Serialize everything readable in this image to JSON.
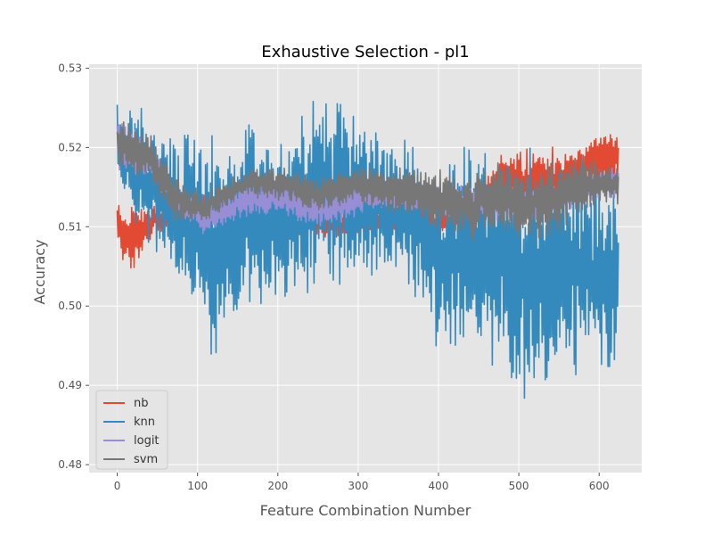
{
  "chart_data": {
    "type": "line",
    "title": "Exhaustive Selection - pl1",
    "xlabel": "Feature Combination Number",
    "ylabel": "Accuracy",
    "xlim": [
      -35,
      653
    ],
    "ylim": [
      0.479,
      0.5305
    ],
    "xticks": [
      0,
      100,
      200,
      300,
      400,
      500,
      600
    ],
    "yticks": [
      0.48,
      0.49,
      0.5,
      0.51,
      0.52,
      0.53
    ],
    "ytick_labels": [
      "0.48",
      "0.49",
      "0.50",
      "0.51",
      "0.52",
      "0.53"
    ],
    "grid": true,
    "legend_position": "lower-left",
    "n_points": 625,
    "series": [
      {
        "name": "nb",
        "color": "#E24A33",
        "anchors": [
          [
            0,
            0.5095
          ],
          [
            20,
            0.5085
          ],
          [
            45,
            0.511
          ],
          [
            80,
            0.5115
          ],
          [
            130,
            0.512
          ],
          [
            160,
            0.5115
          ],
          [
            200,
            0.511
          ],
          [
            260,
            0.5105
          ],
          [
            300,
            0.5105
          ],
          [
            350,
            0.5105
          ],
          [
            400,
            0.5105
          ],
          [
            450,
            0.5115
          ],
          [
            480,
            0.5165
          ],
          [
            520,
            0.5155
          ],
          [
            560,
            0.5165
          ],
          [
            600,
            0.5185
          ],
          [
            624,
            0.5185
          ]
        ],
        "spread": [
          [
            0,
            0.0025
          ],
          [
            20,
            0.0035
          ],
          [
            45,
            0.0015
          ],
          [
            130,
            0.002
          ],
          [
            260,
            0.0015
          ],
          [
            400,
            0.0015
          ],
          [
            450,
            0.002
          ],
          [
            480,
            0.003
          ],
          [
            520,
            0.0035
          ],
          [
            560,
            0.003
          ],
          [
            600,
            0.0035
          ],
          [
            624,
            0.0025
          ]
        ]
      },
      {
        "name": "knn",
        "color": "#348ABD",
        "anchors": [
          [
            0,
            0.5205
          ],
          [
            20,
            0.518
          ],
          [
            60,
            0.514
          ],
          [
            100,
            0.511
          ],
          [
            120,
            0.507
          ],
          [
            160,
            0.5115
          ],
          [
            200,
            0.509
          ],
          [
            240,
            0.5135
          ],
          [
            280,
            0.5145
          ],
          [
            320,
            0.5125
          ],
          [
            360,
            0.5125
          ],
          [
            400,
            0.505
          ],
          [
            440,
            0.5075
          ],
          [
            480,
            0.5055
          ],
          [
            500,
            0.5015
          ],
          [
            520,
            0.5035
          ],
          [
            560,
            0.5055
          ],
          [
            600,
            0.5045
          ],
          [
            624,
            0.5045
          ]
        ],
        "spread": [
          [
            0,
            0.005
          ],
          [
            20,
            0.006
          ],
          [
            60,
            0.0075
          ],
          [
            100,
            0.0095
          ],
          [
            120,
            0.012
          ],
          [
            160,
            0.011
          ],
          [
            200,
            0.0095
          ],
          [
            240,
            0.0105
          ],
          [
            280,
            0.0095
          ],
          [
            320,
            0.0085
          ],
          [
            360,
            0.0075
          ],
          [
            400,
            0.0085
          ],
          [
            440,
            0.0115
          ],
          [
            480,
            0.0115
          ],
          [
            500,
            0.0135
          ],
          [
            520,
            0.0135
          ],
          [
            560,
            0.0115
          ],
          [
            600,
            0.0105
          ],
          [
            624,
            0.0105
          ]
        ]
      },
      {
        "name": "logit",
        "color": "#988ED5",
        "anchors": [
          [
            0,
            0.5205
          ],
          [
            40,
            0.5185
          ],
          [
            70,
            0.5135
          ],
          [
            110,
            0.511
          ],
          [
            160,
            0.5135
          ],
          [
            200,
            0.514
          ],
          [
            250,
            0.512
          ],
          [
            300,
            0.5135
          ],
          [
            350,
            0.514
          ],
          [
            400,
            0.513
          ],
          [
            450,
            0.5135
          ],
          [
            500,
            0.5125
          ],
          [
            550,
            0.5135
          ],
          [
            600,
            0.5155
          ],
          [
            624,
            0.5155
          ]
        ],
        "spread": [
          [
            0,
            0.0025
          ],
          [
            40,
            0.002
          ],
          [
            70,
            0.0015
          ],
          [
            160,
            0.002
          ],
          [
            250,
            0.002
          ],
          [
            350,
            0.0015
          ],
          [
            450,
            0.002
          ],
          [
            624,
            0.0015
          ]
        ]
      },
      {
        "name": "svm",
        "color": "#777777",
        "anchors": [
          [
            0,
            0.5205
          ],
          [
            40,
            0.519
          ],
          [
            70,
            0.5135
          ],
          [
            110,
            0.5125
          ],
          [
            160,
            0.5155
          ],
          [
            200,
            0.5155
          ],
          [
            250,
            0.514
          ],
          [
            300,
            0.5155
          ],
          [
            350,
            0.5145
          ],
          [
            400,
            0.5135
          ],
          [
            440,
            0.5125
          ],
          [
            480,
            0.514
          ],
          [
            500,
            0.5125
          ],
          [
            540,
            0.5135
          ],
          [
            580,
            0.5155
          ],
          [
            624,
            0.515
          ]
        ],
        "spread": [
          [
            0,
            0.0025
          ],
          [
            40,
            0.003
          ],
          [
            70,
            0.0025
          ],
          [
            110,
            0.0015
          ],
          [
            160,
            0.0015
          ],
          [
            250,
            0.002
          ],
          [
            350,
            0.0025
          ],
          [
            440,
            0.0035
          ],
          [
            480,
            0.0035
          ],
          [
            500,
            0.004
          ],
          [
            540,
            0.004
          ],
          [
            580,
            0.003
          ],
          [
            624,
            0.002
          ]
        ]
      }
    ]
  }
}
